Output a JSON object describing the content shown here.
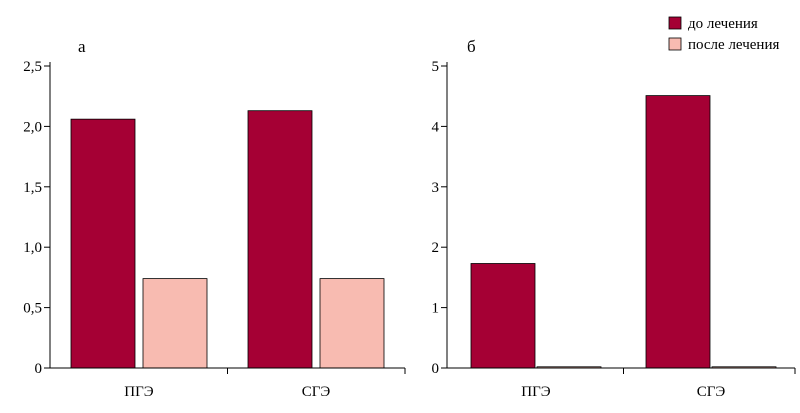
{
  "colors": {
    "before": "#A50034",
    "after": "#F8BBB1",
    "axis": "#000000"
  },
  "legend": [
    {
      "label": "до лечения",
      "color": "#A50034"
    },
    {
      "label": "после лечения",
      "color": "#F8BBB1"
    }
  ],
  "chart_data": [
    {
      "type": "bar",
      "panel_label": "а",
      "categories": [
        "ПГЭ",
        "СГЭ"
      ],
      "series": [
        {
          "name": "до лечения",
          "values": [
            2.06,
            2.13
          ]
        },
        {
          "name": "после лечения",
          "values": [
            0.74,
            0.74
          ]
        }
      ],
      "ylim": [
        0,
        2.5
      ],
      "yticks": [
        "0",
        "0,5",
        "1,0",
        "1,5",
        "2,0",
        "2,5"
      ],
      "ytick_values": [
        0,
        0.5,
        1.0,
        1.5,
        2.0,
        2.5
      ],
      "grid": false,
      "legend_position": "top-right"
    },
    {
      "type": "bar",
      "panel_label": "б",
      "categories": [
        "ПГЭ",
        "СГЭ"
      ],
      "series": [
        {
          "name": "до лечения",
          "values": [
            1.73,
            4.51
          ]
        },
        {
          "name": "после лечения",
          "values": [
            0.02,
            0.02
          ]
        }
      ],
      "ylim": [
        0,
        5
      ],
      "yticks": [
        "0",
        "1",
        "2",
        "3",
        "4",
        "5"
      ],
      "ytick_values": [
        0,
        1,
        2,
        3,
        4,
        5
      ],
      "grid": false,
      "legend_position": "top-right"
    }
  ]
}
